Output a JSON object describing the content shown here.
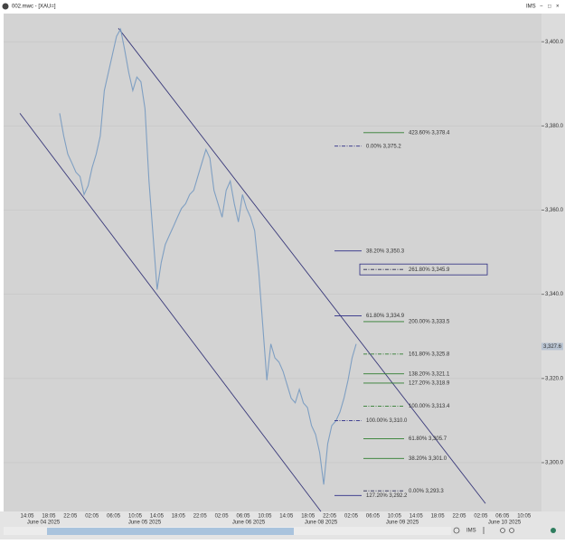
{
  "window": {
    "title": "002.mwc - [XAU=]",
    "account": "IMS",
    "controls": [
      "−",
      "□",
      "×"
    ]
  },
  "chart_data": {
    "type": "line",
    "series": [
      {
        "color": "#7f9fc2",
        "values": [
          3383.0,
          3377.6,
          3373.3,
          3371.2,
          3369.0,
          3368.0,
          3363.7,
          3365.8,
          3370.1,
          3373.3,
          3377.6,
          3388.4,
          3392.7,
          3397.0,
          3401.3,
          3403.0,
          3398.1,
          3392.7,
          3388.4,
          3391.6,
          3390.5,
          3384.1,
          3366.9,
          3354.0,
          3341.1,
          3347.5,
          3351.8,
          3354.0,
          3356.1,
          3358.3,
          3360.4,
          3361.5,
          3363.7,
          3364.7,
          3368.0,
          3371.2,
          3374.4,
          3372.3,
          3364.7,
          3361.5,
          3358.3,
          3364.7,
          3366.9,
          3361.5,
          3357.2,
          3363.7,
          3360.4,
          3358.3,
          3355.1,
          3345.4,
          3332.5,
          3319.6,
          3328.2,
          3324.9,
          3323.9,
          3321.7,
          3318.5,
          3315.3,
          3314.2,
          3317.4,
          3314.2,
          3313.1,
          3308.8,
          3306.7,
          3302.4,
          3294.8,
          3304.5,
          3308.8,
          3309.9,
          3312.0,
          3315.3,
          3319.6,
          3324.9,
          3328.2
        ]
      }
    ],
    "ylim": [
      3288.4,
      3406.7
    ],
    "yticks": [
      {
        "value": 3300,
        "label": "3,300.0"
      },
      {
        "value": 3320,
        "label": "3,320.0"
      },
      {
        "value": 3340,
        "label": "3,340.0"
      },
      {
        "value": 3360,
        "label": "3,360.0"
      },
      {
        "value": 3380,
        "label": "3,380.0"
      },
      {
        "value": 3400,
        "label": "3,400.0"
      }
    ],
    "grid": true,
    "current_price": {
      "value": 3327.6,
      "label": "3,327.6"
    },
    "x_time_labels": [
      "14:05",
      "18:05",
      "22:05",
      "02:05",
      "06:05",
      "10:05",
      "14:05",
      "18:05",
      "22:05",
      "02:05",
      "06:05",
      "10:05",
      "14:05",
      "18:05",
      "22:05",
      "02:05",
      "06:05",
      "10:05",
      "14:05",
      "18:05",
      "22:05",
      "02:05",
      "06:05",
      "10:05"
    ],
    "x_date_labels": [
      "June 04 2025",
      "June 05 2025",
      "June 06 2025",
      "June 08 2025",
      "June 09 2025",
      "June 10 2025"
    ],
    "channel_lines": [
      {
        "start": 3403.2,
        "end": 3290.3,
        "color": "#3a3a7a"
      },
      {
        "start": 3383.0,
        "end": 3288.4,
        "color": "#3a3a7a"
      }
    ],
    "fib_left": [
      {
        "text": "0.00% 3,375.2",
        "value": 3375.2,
        "color": "#2c2c86",
        "style": "dashdot"
      },
      {
        "text": "38.20% 3,350.3",
        "value": 3350.3,
        "color": "#2c2c86",
        "style": "solid"
      },
      {
        "text": "61.80% 3,334.9",
        "value": 3334.9,
        "color": "#2c2c86",
        "style": "solid"
      },
      {
        "text": "100.00% 3,310.0",
        "value": 3310.0,
        "color": "#2c2c86",
        "style": "dashdot"
      },
      {
        "text": "127.20% 3,292.2",
        "value": 3292.2,
        "color": "#2c2c86",
        "style": "solid"
      }
    ],
    "fib_right": [
      {
        "text": "423.60% 3,378.4",
        "value": 3378.4,
        "color": "#2e7d2e",
        "style": "solid"
      },
      {
        "text": "261.80% 3,345.9",
        "value": 3345.9,
        "color": "#2a2a50",
        "style": "dashdot",
        "boxed": true
      },
      {
        "text": "200.00% 3,333.5",
        "value": 3333.5,
        "color": "#2e7d2e",
        "style": "solid"
      },
      {
        "text": "161.80% 3,325.8",
        "value": 3325.8,
        "color": "#2e7d2e",
        "style": "dashdot"
      },
      {
        "text": "138.20% 3,321.1",
        "value": 3321.1,
        "color": "#2e7d2e",
        "style": "solid"
      },
      {
        "text": "127.20% 3,318.9",
        "value": 3318.9,
        "color": "#2e7d2e",
        "style": "solid"
      },
      {
        "text": "100.00% 3,313.4",
        "value": 3313.4,
        "color": "#2e7d2e",
        "style": "dashdot"
      },
      {
        "text": "61.80% 3,305.7",
        "value": 3305.7,
        "color": "#2e7d2e",
        "style": "solid"
      },
      {
        "text": "38.20% 3,301.0",
        "value": 3301.0,
        "color": "#2e7d2e",
        "style": "solid"
      },
      {
        "text": "0.00% 3,293.3",
        "value": 3293.3,
        "color": "#2a2a50",
        "style": "dashdot"
      }
    ],
    "toolbar_label": "IMS"
  }
}
